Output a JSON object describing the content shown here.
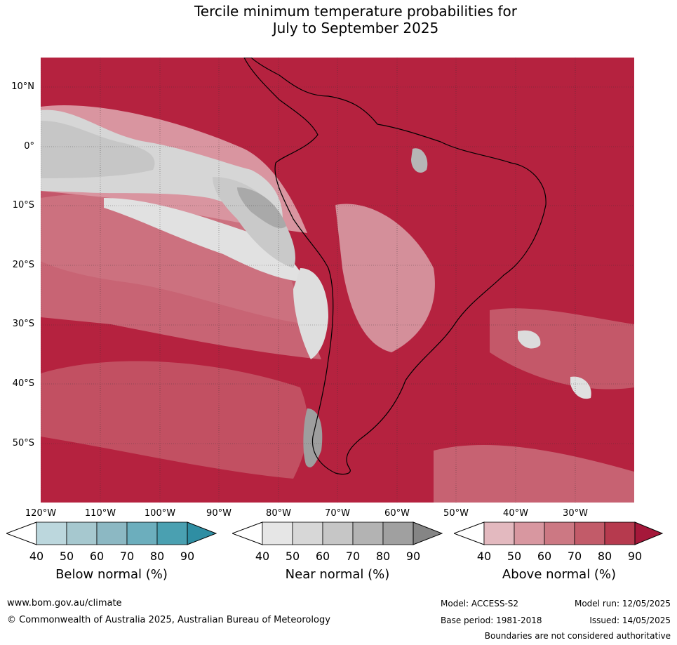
{
  "title": {
    "line1": "Tercile minimum temperature probabilities for",
    "line2": "July to September 2025"
  },
  "map": {
    "lat_labels": [
      "10°N",
      "0°",
      "10°S",
      "20°S",
      "30°S",
      "40°S",
      "50°S"
    ],
    "lon_labels": [
      "120°W",
      "110°W",
      "100°W",
      "90°W",
      "80°W",
      "70°W",
      "60°W",
      "50°W",
      "40°W",
      "30°W"
    ]
  },
  "colorbars": [
    {
      "title": "Below normal (%)",
      "ticks": [
        "40",
        "50",
        "60",
        "70",
        "80",
        "90"
      ],
      "colors": [
        "#bcd7dd",
        "#a6c8cf",
        "#8cb8c3",
        "#6caebd",
        "#4aa0b1",
        "#2f8ea3"
      ]
    },
    {
      "title": "Near normal (%)",
      "ticks": [
        "40",
        "50",
        "60",
        "70",
        "80",
        "90"
      ],
      "colors": [
        "#e6e6e6",
        "#d7d7d7",
        "#c6c6c6",
        "#b3b3b3",
        "#a0a0a0",
        "#858585"
      ]
    },
    {
      "title": "Above normal (%)",
      "ticks": [
        "40",
        "50",
        "60",
        "70",
        "80",
        "90"
      ],
      "colors": [
        "#e3b9bf",
        "#d897a0",
        "#cc7883",
        "#c25b69",
        "#b63a4e",
        "#a5183a"
      ]
    }
  ],
  "footer": {
    "url": "www.bom.gov.au/climate",
    "copyright": "© Commonwealth of Australia 2025, Australian Bureau of Meteorology",
    "model": "Model: ACCESS-S2",
    "base_period": "Base period: 1981-2018",
    "model_run": "Model run: 12/05/2025",
    "issued": "Issued: 14/05/2025",
    "disclaimer": "Boundaries are not considered authoritative"
  }
}
